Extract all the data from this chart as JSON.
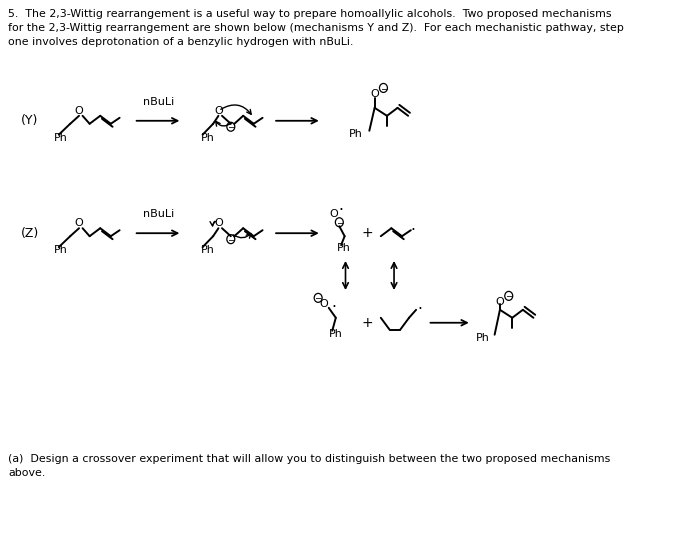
{
  "bg_color": "#ffffff",
  "fig_width": 7.0,
  "fig_height": 5.45,
  "title_line1": "5.  The 2,3-Wittig rearrangement is a useful way to prepare homoallylic alcohols.  Two proposed mechanisms",
  "title_line2": "for the 2,3-Wittig rearrangement are shown below (mechanisms Y and Z).  For each mechanistic pathway, step",
  "title_line3": "one involves deprotonation of a benzylic hydrogen with nBuLi.",
  "footer_line1": "(a)  Design a crossover experiment that will allow you to distinguish between the two proposed mechanisms",
  "footer_line2": "above.",
  "text_color": "#000000"
}
